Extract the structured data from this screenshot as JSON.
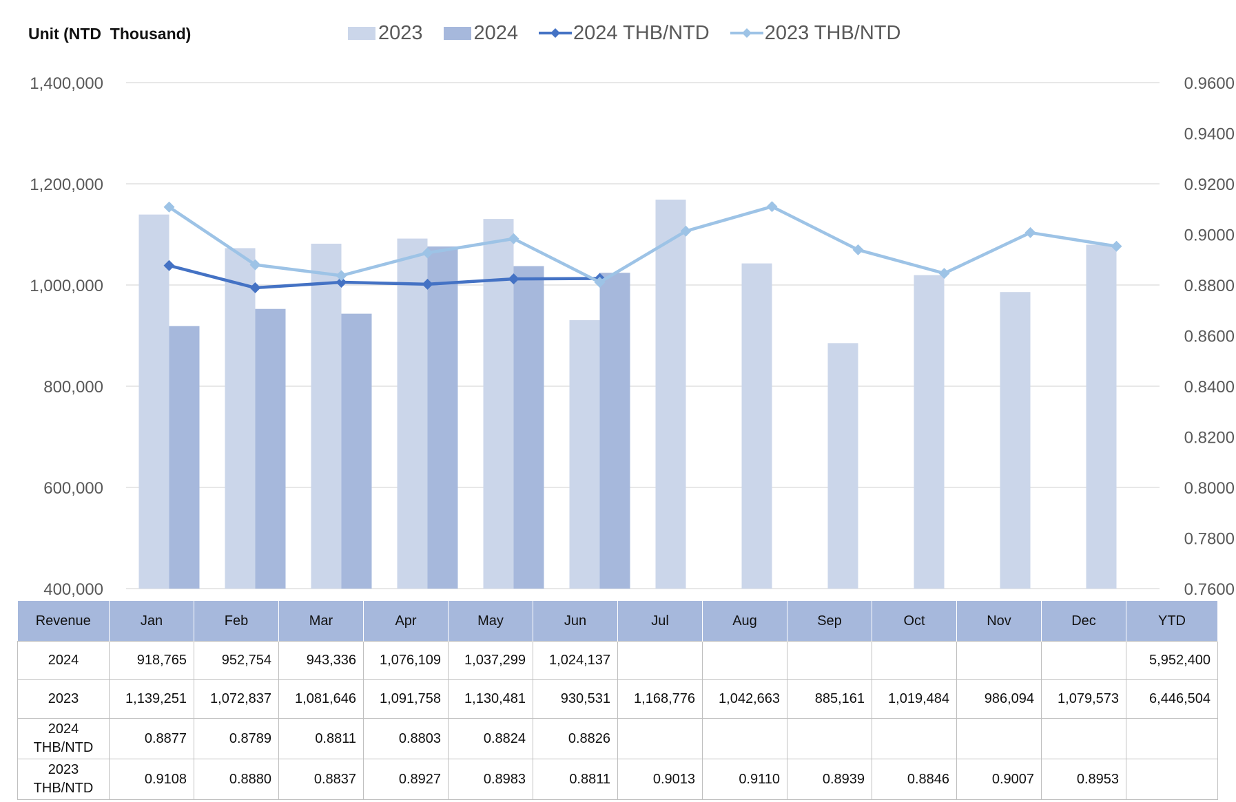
{
  "unit_title": "Unit (NTD  Thousand)",
  "legend": [
    {
      "label": "2023",
      "kind": "bar",
      "color": "#cbd6ea"
    },
    {
      "label": "2024",
      "kind": "bar",
      "color": "#a6b8dc"
    },
    {
      "label": "2024 THB/NTD",
      "kind": "line",
      "color": "#4472c4"
    },
    {
      "label": "2023 THB/NTD",
      "kind": "line",
      "color": "#9dc3e6"
    }
  ],
  "chart_data": {
    "type": "bar",
    "categories": [
      "Jan",
      "Feb",
      "Mar",
      "Apr",
      "May",
      "Jun",
      "Jul",
      "Aug",
      "Sep",
      "Oct",
      "Nov",
      "Dec"
    ],
    "series": [
      {
        "name": "2023",
        "type": "bar",
        "axis": "left",
        "color": "#cbd6ea",
        "values": [
          1139251,
          1072837,
          1081646,
          1091758,
          1130481,
          930531,
          1168776,
          1042663,
          885161,
          1019484,
          986094,
          1079573
        ]
      },
      {
        "name": "2024",
        "type": "bar",
        "axis": "left",
        "color": "#a6b8dc",
        "values": [
          918765,
          952754,
          943336,
          1076109,
          1037299,
          1024137,
          null,
          null,
          null,
          null,
          null,
          null
        ]
      },
      {
        "name": "2024 THB/NTD",
        "type": "line",
        "axis": "right",
        "color": "#4472c4",
        "values": [
          0.8877,
          0.8789,
          0.8811,
          0.8803,
          0.8824,
          0.8826,
          null,
          null,
          null,
          null,
          null,
          null
        ]
      },
      {
        "name": "2023 THB/NTD",
        "type": "line",
        "axis": "right",
        "color": "#9dc3e6",
        "values": [
          0.9108,
          0.888,
          0.8837,
          0.8927,
          0.8983,
          0.8811,
          0.9013,
          0.911,
          0.8939,
          0.8846,
          0.9007,
          0.8953
        ]
      }
    ],
    "ylim_left": [
      400000,
      1400000
    ],
    "ylim_right": [
      0.76,
      0.96
    ],
    "left_ticks": [
      400000,
      600000,
      800000,
      1000000,
      1200000,
      1400000
    ],
    "left_tick_labels": [
      "400,000",
      "600,000",
      "800,000",
      "1,000,000",
      "1,200,000",
      "1,400,000"
    ],
    "right_ticks": [
      0.76,
      0.78,
      0.8,
      0.82,
      0.84,
      0.86,
      0.88,
      0.9,
      0.92,
      0.94,
      0.96
    ],
    "right_tick_labels": [
      "0.7600",
      "0.7800",
      "0.8000",
      "0.8200",
      "0.8400",
      "0.8600",
      "0.8800",
      "0.9000",
      "0.9200",
      "0.9400",
      "0.9600"
    ],
    "grid": true,
    "legend_position": "top"
  },
  "table": {
    "header": [
      "Revenue",
      "Jan",
      "Feb",
      "Mar",
      "Apr",
      "May",
      "Jun",
      "Jul",
      "Aug",
      "Sep",
      "Oct",
      "Nov",
      "Dec",
      "YTD"
    ],
    "rows": [
      {
        "label": "2024",
        "cells": [
          "918,765",
          "952,754",
          "943,336",
          "1,076,109",
          "1,037,299",
          "1,024,137",
          "",
          "",
          "",
          "",
          "",
          "",
          "5,952,400"
        ]
      },
      {
        "label": "2023",
        "cells": [
          "1,139,251",
          "1,072,837",
          "1,081,646",
          "1,091,758",
          "1,130,481",
          "930,531",
          "1,168,776",
          "1,042,663",
          "885,161",
          "1,019,484",
          "986,094",
          "1,079,573",
          "6,446,504"
        ]
      },
      {
        "label": "2024\nTHB/NTD",
        "cells": [
          "0.8877",
          "0.8789",
          "0.8811",
          "0.8803",
          "0.8824",
          "0.8826",
          "",
          "",
          "",
          "",
          "",
          "",
          ""
        ]
      },
      {
        "label": "2023\nTHB/NTD",
        "cells": [
          "0.9108",
          "0.8880",
          "0.8837",
          "0.8927",
          "0.8983",
          "0.8811",
          "0.9013",
          "0.9110",
          "0.8939",
          "0.8846",
          "0.9007",
          "0.8953",
          ""
        ]
      }
    ]
  }
}
